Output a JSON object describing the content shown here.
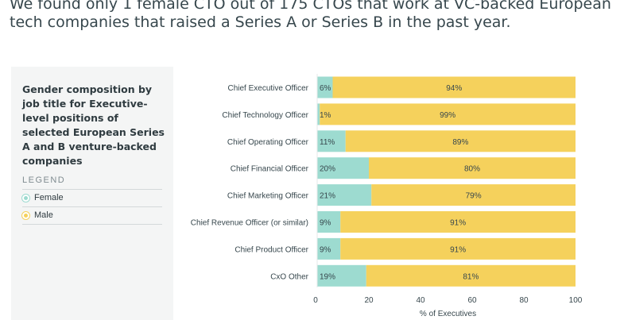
{
  "headline": "We found only 1 female CTO out of 175 CTOs that work at VC-backed European tech companies that raised a Series A or Series B in the past year.",
  "panel": {
    "title": "Gender composition by job title for Executive-level positions of selected European Series A and B venture-backed companies",
    "legend_heading": "LEGEND",
    "legend": [
      {
        "name": "Female",
        "color": "#9ddbd0"
      },
      {
        "name": "Male",
        "color": "#f5d15c"
      }
    ]
  },
  "chart_data": {
    "type": "bar",
    "orientation": "horizontal",
    "stacked": true,
    "categories": [
      "Chief Executive Officer",
      "Chief Technology Officer",
      "Chief Operating Officer",
      "Chief Financial Officer",
      "Chief Marketing Officer",
      "Chief Revenue Officer (or similar)",
      "Chief Product Officer",
      "CxO Other"
    ],
    "series": [
      {
        "name": "Female",
        "color": "#9ddbd0",
        "values": [
          6,
          1,
          11,
          20,
          21,
          9,
          9,
          19
        ]
      },
      {
        "name": "Male",
        "color": "#f5d15c",
        "values": [
          94,
          99,
          89,
          80,
          79,
          91,
          91,
          81
        ]
      }
    ],
    "data_labels": [
      [
        "6%",
        "1%",
        "11%",
        "20%",
        "21%",
        "9%",
        "9%",
        "19%"
      ],
      [
        "94%",
        "99%",
        "89%",
        "80%",
        "79%",
        "91%",
        "91%",
        "81%"
      ]
    ],
    "xlabel": "% of Executives",
    "xlim": [
      0,
      100
    ],
    "xticks": [
      0,
      20,
      40,
      60,
      80,
      100
    ],
    "grid": false
  }
}
